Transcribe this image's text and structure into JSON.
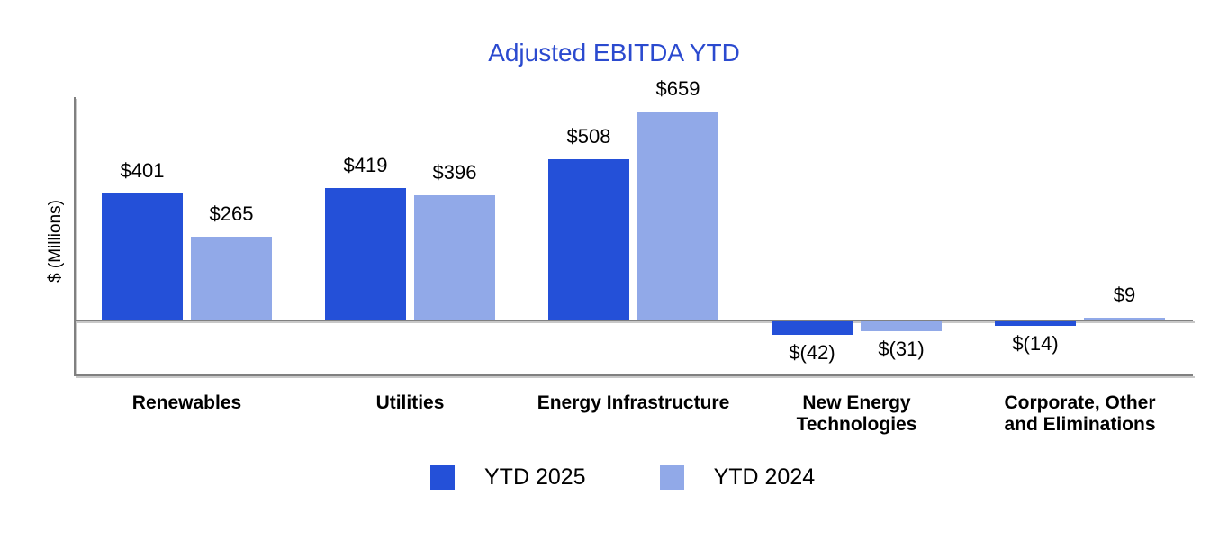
{
  "title": "Adjusted EBITDA YTD",
  "colors": {
    "title": "#2b4acf",
    "series_ytd_2025": "#2450d8",
    "series_ytd_2024": "#91a9e8",
    "axis": "#808080",
    "text": "#000000"
  },
  "chart_data": {
    "type": "bar",
    "title": "Adjusted EBITDA YTD",
    "ylabel": "$ (Millions)",
    "xlabel": "",
    "grid": false,
    "legend_position": "bottom",
    "ylim": [
      -100,
      700
    ],
    "categories": [
      "Renewables",
      "Utilities",
      "Energy Infrastructure",
      "New Energy\nTechnologies",
      "Corporate, Other\nand Eliminations"
    ],
    "series": [
      {
        "name": "YTD 2025",
        "color": "#2450d8",
        "values": [
          401,
          419,
          508,
          -42,
          -14
        ],
        "labels": [
          "$401",
          "$419",
          "$508",
          "$(42)",
          "$(14)"
        ]
      },
      {
        "name": "YTD 2024",
        "color": "#91a9e8",
        "values": [
          265,
          396,
          659,
          -31,
          9
        ],
        "labels": [
          "$265",
          "$396",
          "$659",
          "$(31)",
          "$9"
        ]
      }
    ]
  }
}
